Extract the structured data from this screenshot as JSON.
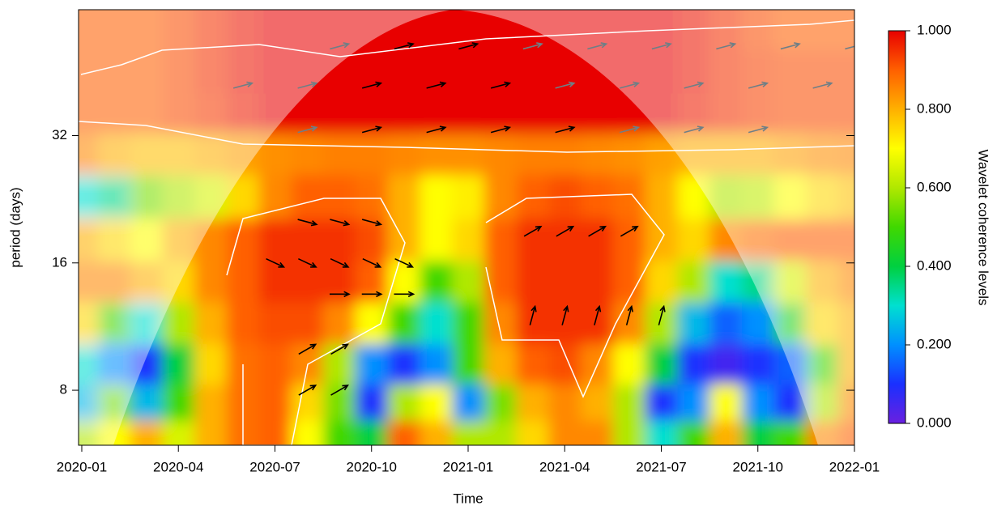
{
  "chart_data": {
    "type": "heatmap",
    "x_label": "Time",
    "y_label": "period (days)",
    "colorbar_label": "Wavelet coherence levels",
    "xlim": [
      -0.1,
      24
    ],
    "xticks": [
      {
        "value": 0,
        "label": "2020-01"
      },
      {
        "value": 3,
        "label": "2020-04"
      },
      {
        "value": 6,
        "label": "2020-07"
      },
      {
        "value": 9,
        "label": "2020-10"
      },
      {
        "value": 12,
        "label": "2021-01"
      },
      {
        "value": 15,
        "label": "2021-04"
      },
      {
        "value": 18,
        "label": "2021-07"
      },
      {
        "value": 21,
        "label": "2021-10"
      },
      {
        "value": 24,
        "label": "2022-01"
      }
    ],
    "y_scale": "log",
    "ylim": [
      5.93,
      63.5
    ],
    "yticks": [
      8,
      16,
      32
    ],
    "columns": [
      0,
      1,
      2,
      3,
      4,
      5,
      6,
      7,
      8,
      9,
      10,
      11,
      12,
      13,
      14,
      15,
      16,
      17,
      18,
      19,
      20,
      21,
      22,
      23,
      24
    ],
    "rows": [
      58,
      45,
      36,
      29,
      23,
      18,
      14.5,
      11.5,
      9.2,
      7.4,
      6.2
    ],
    "values": [
      [
        0.9,
        0.9,
        0.9,
        0.92,
        0.95,
        0.98,
        1,
        1,
        1,
        1,
        1,
        1,
        1,
        1,
        1,
        1,
        1,
        1,
        1,
        0.98,
        0.95,
        0.92,
        0.9,
        0.9,
        0.9
      ],
      [
        0.9,
        0.9,
        0.9,
        0.92,
        0.95,
        0.98,
        1,
        1,
        1,
        1,
        1,
        1,
        1,
        1,
        1,
        1,
        1,
        1,
        1,
        0.98,
        0.95,
        0.93,
        0.92,
        0.92,
        0.92
      ],
      [
        0.9,
        0.9,
        0.9,
        0.92,
        0.94,
        0.97,
        1,
        1,
        1,
        1,
        1,
        1,
        1,
        1,
        1,
        1,
        1,
        1,
        1,
        0.97,
        0.95,
        0.93,
        0.92,
        0.92,
        0.92
      ],
      [
        0.85,
        0.8,
        0.78,
        0.78,
        0.8,
        0.82,
        0.84,
        0.85,
        0.86,
        0.86,
        0.85,
        0.84,
        0.84,
        0.85,
        0.86,
        0.86,
        0.85,
        0.84,
        0.82,
        0.8,
        0.8,
        0.8,
        0.82,
        0.84,
        0.85
      ],
      [
        0.3,
        0.35,
        0.55,
        0.6,
        0.65,
        0.75,
        0.85,
        0.9,
        0.9,
        0.88,
        0.8,
        0.7,
        0.72,
        0.85,
        0.9,
        0.92,
        0.9,
        0.88,
        0.8,
        0.7,
        0.6,
        0.62,
        0.7,
        0.75,
        0.78
      ],
      [
        0.8,
        0.75,
        0.7,
        0.8,
        0.85,
        0.9,
        0.95,
        0.95,
        0.95,
        0.92,
        0.8,
        0.7,
        0.75,
        0.9,
        0.95,
        0.95,
        0.95,
        0.9,
        0.8,
        0.75,
        0.85,
        0.88,
        0.9,
        0.9,
        0.9
      ],
      [
        0.85,
        0.85,
        0.8,
        0.75,
        0.85,
        0.9,
        0.95,
        0.95,
        0.95,
        0.9,
        0.7,
        0.5,
        0.6,
        0.9,
        0.95,
        0.95,
        0.95,
        0.9,
        0.75,
        0.6,
        0.3,
        0.35,
        0.65,
        0.8,
        0.85
      ],
      [
        0.75,
        0.5,
        0.3,
        0.6,
        0.8,
        0.9,
        0.92,
        0.92,
        0.85,
        0.7,
        0.5,
        0.3,
        0.5,
        0.85,
        0.95,
        0.95,
        0.95,
        0.85,
        0.6,
        0.25,
        0.15,
        0.2,
        0.45,
        0.75,
        0.8
      ],
      [
        0.3,
        0.2,
        0.1,
        0.4,
        0.75,
        0.88,
        0.9,
        0.85,
        0.6,
        0.2,
        0.1,
        0.2,
        0.5,
        0.8,
        0.9,
        0.92,
        0.85,
        0.7,
        0.4,
        0.1,
        0.05,
        0.1,
        0.15,
        0.5,
        0.8
      ],
      [
        0.25,
        0.55,
        0.25,
        0.5,
        0.8,
        0.88,
        0.9,
        0.75,
        0.55,
        0.1,
        0.6,
        0.7,
        0.2,
        0.55,
        0.8,
        0.85,
        0.8,
        0.6,
        0.1,
        0.2,
        0.7,
        0.2,
        0.1,
        0.6,
        0.85
      ],
      [
        0.6,
        0.7,
        0.8,
        0.65,
        0.8,
        0.88,
        0.9,
        0.7,
        0.5,
        0.4,
        0.9,
        0.8,
        0.6,
        0.6,
        0.75,
        0.85,
        0.85,
        0.6,
        0.3,
        0.5,
        0.8,
        0.4,
        0.5,
        0.85,
        0.9
      ]
    ],
    "colorbar_lim": [
      0,
      1
    ],
    "colorbar_ticks": [
      {
        "value": 0,
        "label": "0.000"
      },
      {
        "value": 0.2,
        "label": "0.200"
      },
      {
        "value": 0.4,
        "label": "0.400"
      },
      {
        "value": 0.6,
        "label": "0.600"
      },
      {
        "value": 0.8,
        "label": "0.800"
      },
      {
        "value": 1,
        "label": "1.000"
      }
    ],
    "colormap": [
      "#6a20e0",
      "#1a30ff",
      "#0090ff",
      "#00e0d0",
      "#00d040",
      "#40d800",
      "#b0e800",
      "#ffff00",
      "#ffb000",
      "#ff6000",
      "#e80000"
    ],
    "arrows": {
      "x": [
        8,
        10,
        12,
        14,
        16,
        18,
        20,
        22,
        24,
        5,
        7,
        9,
        11,
        13,
        15,
        17,
        19,
        21,
        23,
        7,
        9,
        11,
        13,
        15,
        17,
        19,
        21,
        7,
        8,
        9,
        6,
        7,
        8,
        9,
        10,
        8,
        9,
        10,
        7,
        8,
        7,
        8,
        14,
        15,
        16,
        17,
        14,
        15,
        16,
        17,
        18
      ],
      "y": [
        52,
        52,
        52,
        52,
        52,
        52,
        52,
        52,
        52,
        42,
        42,
        42,
        42,
        42,
        42,
        42,
        42,
        42,
        42,
        33,
        33,
        33,
        33,
        33,
        33,
        33,
        33,
        20,
        20,
        20,
        16,
        16,
        16,
        16,
        16,
        13.5,
        13.5,
        13.5,
        10,
        10,
        8,
        8,
        19,
        19,
        19,
        19,
        12,
        12,
        12,
        12,
        12
      ],
      "angle": [
        15,
        15,
        15,
        15,
        15,
        15,
        15,
        15,
        15,
        15,
        15,
        15,
        15,
        15,
        15,
        15,
        15,
        15,
        15,
        15,
        15,
        15,
        15,
        15,
        15,
        15,
        15,
        -15,
        -15,
        -15,
        -25,
        -25,
        -25,
        -25,
        -25,
        0,
        0,
        0,
        30,
        30,
        30,
        30,
        30,
        30,
        30,
        30,
        75,
        75,
        75,
        75,
        75
      ]
    }
  }
}
